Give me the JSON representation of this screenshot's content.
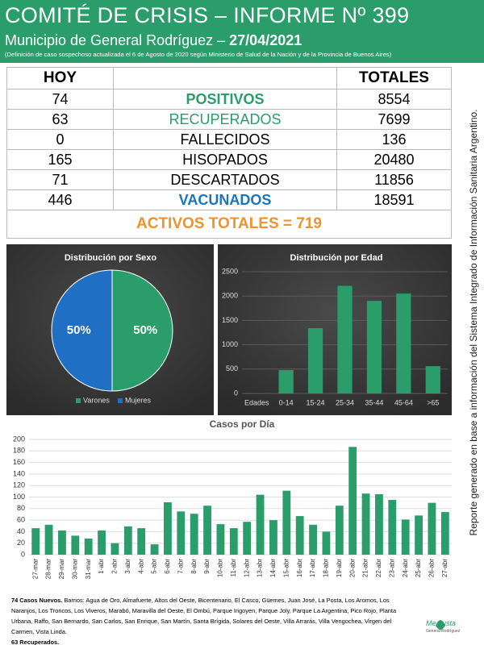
{
  "header": {
    "title": "COMITÉ DE CRISIS – INFORME Nº 399",
    "subtitle": "Municipio de General Rodríguez – ",
    "date": "27/04/2021",
    "note": "(Definición de caso sospechoso actualizada el 6 de Agosto de 2020 según Ministerio de Salud de la Nación y de la Provincia de Buenos Aires)"
  },
  "table": {
    "hoy": "HOY",
    "totales": "TOTALES",
    "rows": [
      [
        74,
        "POSITIVOS",
        8554
      ],
      [
        63,
        "RECUPERADOS",
        7699
      ],
      [
        0,
        "FALLECIDOS",
        136
      ],
      [
        165,
        "HISOPADOS",
        20480
      ],
      [
        71,
        "DESCARTADOS",
        11856
      ],
      [
        446,
        "VACUNADOS",
        18591
      ]
    ],
    "total": "ACTIVOS TOTALES = 719"
  },
  "side_note": "Reporte generado en base a información del Sistema Integrado de Información Sanitaria Argentino.",
  "chart_data": [
    {
      "type": "pie",
      "title": "Distribución por Sexo",
      "categories": [
        "Varones",
        "Mujeres"
      ],
      "values": [
        50,
        50
      ],
      "value_labels": [
        "50%",
        "50%"
      ],
      "colors": [
        "#2a9d6b",
        "#1f6fc5"
      ]
    },
    {
      "type": "bar",
      "title": "Distribución por Edad",
      "categories": [
        "Edades",
        "0-14",
        "15-24",
        "25-34",
        "35-44",
        "45-64",
        ">65"
      ],
      "values": [
        null,
        480,
        1340,
        2210,
        1900,
        2050,
        560
      ],
      "color": "#2a9d6b",
      "ylim": [
        0,
        2500
      ],
      "yticks": [
        0,
        500,
        1000,
        1500,
        2000,
        2500
      ],
      "grid": true
    },
    {
      "type": "bar",
      "title": "Casos por Día",
      "categories": [
        "27-mar",
        "28-mar",
        "29-mar",
        "30-mar",
        "31-mar",
        "1-abr",
        "2-abr",
        "3-abr",
        "4-abr",
        "5-abr",
        "6-abr",
        "7-abr",
        "8-abr",
        "9-abr",
        "10-abr",
        "11-abr",
        "12-abr",
        "13-abr",
        "14-abr",
        "15-abr",
        "16-abr",
        "17-abr",
        "18-abr",
        "19-abr",
        "20-abr",
        "21-abr",
        "22-abr",
        "23-abr",
        "24-abr",
        "25-abr",
        "26-abr",
        "27-abr"
      ],
      "values": [
        46,
        52,
        42,
        33,
        28,
        42,
        20,
        49,
        46,
        18,
        91,
        75,
        71,
        85,
        53,
        46,
        57,
        104,
        60,
        111,
        67,
        52,
        40,
        85,
        187,
        106,
        105,
        95,
        61,
        68,
        90,
        74
      ],
      "color": "#2a9d6b",
      "ylim": [
        0,
        200
      ],
      "yticks": [
        0,
        20,
        40,
        60,
        80,
        100,
        120,
        140,
        160,
        180,
        200
      ],
      "grid": true
    }
  ],
  "footer": {
    "new_cases": "74 Casos Nuevos.",
    "barrios": " Barrios: Agua de Oro, Almafuerte, Altos del Oeste, Bicentenario, El Casco, Güemes, Juan José, La Posta, Los Aromos, Los Naranjos, Los Troncos, Los Viveros, Marabó, Maravilla del Oeste, El Ombú, Parque Irigoyen, Parque Joly, Parque La Argentina, Pico Rojo, Planta Urbana, Raffo, San Bernardo, San Carlos, San Enrique, San Martín, Santa Brígida, Solares del Oeste, Villa Arrarás, Villa Vengochea, Virgen del Carmen, Vista Linda.",
    "recovered": "63 Recuperados.",
    "logo": "Me gusta",
    "logo_sub": "General Rodríguez"
  }
}
